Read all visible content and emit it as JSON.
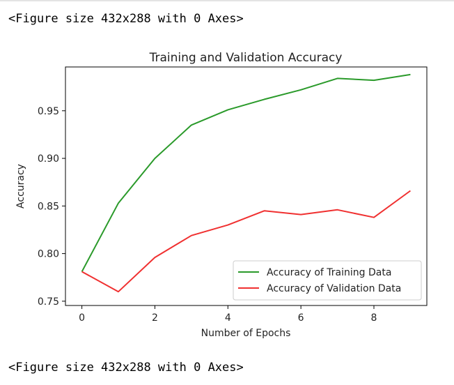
{
  "output_cells": {
    "top_text": "<Figure size 432x288 with 0 Axes>",
    "bottom_text": "<Figure size 432x288 with 0 Axes>"
  },
  "chart_data": {
    "type": "line",
    "title": "Training and Validation Accuracy",
    "xlabel": "Number of Epochs",
    "ylabel": "Accuracy",
    "xlim": [
      -0.45,
      9.45
    ],
    "ylim": [
      0.7455,
      0.996
    ],
    "xticks": [
      0,
      2,
      4,
      6,
      8
    ],
    "xtick_labels": [
      "0",
      "2",
      "4",
      "6",
      "8"
    ],
    "yticks": [
      0.75,
      0.8,
      0.85,
      0.9,
      0.95
    ],
    "ytick_labels": [
      "0.75",
      "0.80",
      "0.85",
      "0.90",
      "0.95"
    ],
    "x": [
      0,
      1,
      2,
      3,
      4,
      5,
      6,
      7,
      8,
      9
    ],
    "series": [
      {
        "name": "Accuracy of Training Data",
        "color": "#2a9a2a",
        "values": [
          0.781,
          0.853,
          0.9,
          0.935,
          0.951,
          0.962,
          0.972,
          0.984,
          0.982,
          0.988
        ]
      },
      {
        "name": "Accuracy of Validation Data",
        "color": "#f03030",
        "values": [
          0.781,
          0.76,
          0.796,
          0.819,
          0.83,
          0.845,
          0.841,
          0.846,
          0.838,
          0.866
        ]
      }
    ],
    "legend_location": "lower-right",
    "grid": false
  }
}
